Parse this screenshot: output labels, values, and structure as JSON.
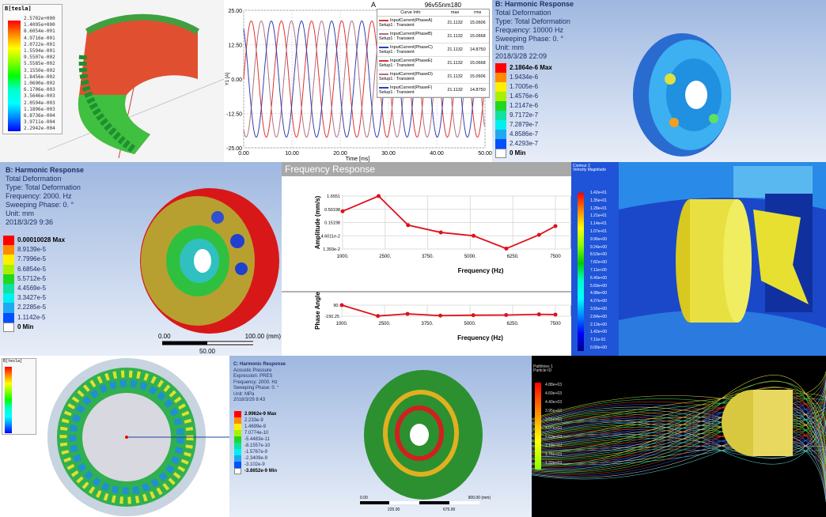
{
  "panel1": {
    "legend_title": "B[tesla]",
    "legend_values": [
      "2.5702e+000",
      "1.4095e+000",
      "8.6054e-001",
      "4.9716e-001",
      "2.0722e-001",
      "1.5594e-001",
      "9.5507e-002",
      "5.5585e-002",
      "3.1550e-002",
      "1.8456e-002",
      "1.0690e-002",
      "6.1706e-003",
      "3.5646e-003",
      "2.0594e-003",
      "1.1896e-003",
      "6.8736e-004",
      "3.9711e-004",
      "2.2942e-004"
    ]
  },
  "panel2": {
    "title": "A",
    "design": "96v55nm180",
    "ylabel": "Y1 [A]",
    "xlabel": "Time [ms]",
    "table_headers": [
      "Curve Info",
      "max",
      "rms"
    ],
    "table_rows": [
      {
        "name": "InputCurrent(PhaseA)",
        "setup": "Setup1 : Transient",
        "max": "21.1132",
        "rms": "15.0606",
        "color": "#e03030"
      },
      {
        "name": "InputCurrent(PhaseB)",
        "setup": "Setup1 : Transient",
        "max": "21.1132",
        "rms": "15.0668",
        "color": "#b07080"
      },
      {
        "name": "InputCurrent(PhaseC)",
        "setup": "Setup1 : Transient",
        "max": "21.1132",
        "rms": "14.8750",
        "color": "#3040b0"
      },
      {
        "name": "InputCurrent(PhaseE)",
        "setup": "Setup1 : Transient",
        "max": "21.1132",
        "rms": "15.0668",
        "color": "#e03030"
      },
      {
        "name": "InputCurrent(PhaseD)",
        "setup": "Setup1 : Transient",
        "max": "21.1132",
        "rms": "15.0606",
        "color": "#b07080"
      },
      {
        "name": "InputCurrent(PhaseF)",
        "setup": "Setup1 : Transient",
        "max": "21.1132",
        "rms": "14.8750",
        "color": "#3040b0"
      }
    ]
  },
  "panel3": {
    "header": "B: Harmonic Response",
    "lines": [
      "Total Deformation",
      "Type: Total Deformation",
      "Frequency: 10000 Hz",
      "Sweeping Phase: 0. °",
      "Unit: mm",
      "2018/3/28 22:09"
    ],
    "legend_values": [
      "2.1864e-6 Max",
      "1.9434e-6",
      "1.7005e-6",
      "1.4576e-6",
      "1.2147e-6",
      "9.7172e-7",
      "7.2879e-7",
      "4.8586e-7",
      "2.4293e-7",
      "0 Min"
    ]
  },
  "panel4": {
    "header": "B: Harmonic Response",
    "lines": [
      "Total Deformation",
      "Type: Total Deformation",
      "Frequency: 2000. Hz",
      "Sweeping Phase: 0. °",
      "Unit: mm",
      "2018/3/29 9:36"
    ],
    "legend_values": [
      "0.00010028 Max",
      "8.9139e-5",
      "7.7996e-5",
      "6.6854e-5",
      "5.5712e-5",
      "4.4569e-5",
      "3.3427e-5",
      "2.2285e-5",
      "1.1142e-5",
      "0 Min"
    ],
    "scale": {
      "left": "0.00",
      "right": "100.00 (mm)",
      "mid": "50.00"
    }
  },
  "panel5": {
    "title": "Frequency Response"
  },
  "panel6": {
    "legend_title": "Contour 2",
    "legend_subtitle": "Velocity Magnitude",
    "legend_values": [
      "1.42e+01",
      "1.35e+01",
      "1.28e+01",
      "1.21e+01",
      "1.14e+01",
      "1.07e+01",
      "9.96e+00",
      "9.24e+00",
      "8.53e+00",
      "7.82e+00",
      "7.11e+00",
      "6.40e+00",
      "5.69e+00",
      "4.98e+00",
      "4.27e+00",
      "3.56e+00",
      "2.84e+00",
      "2.13e+00",
      "1.42e+00",
      "7.11e-01",
      "0.00e+00"
    ]
  },
  "panel7": {
    "legend_title": "B[tesla]"
  },
  "panel8": {
    "header": "C: Harmonic Response",
    "lines": [
      "Acoustic Pressure",
      "Expression: PRES",
      "Frequency: 2000. Hz",
      "Sweeping Phase: 0. °",
      "Unit: MPa",
      "2018/3/29 8:43"
    ],
    "legend_values": [
      "2.9962e-9 Max",
      "2.233e-9",
      "1.4699e-9",
      "7.0774e-10",
      "-5.4483e-11",
      "-8.1557e-10",
      "-1.5767e-9",
      "-2.3409e-9",
      "-3.102e-9",
      "-3.8652e-9 Min"
    ],
    "scale": {
      "left": "0.00",
      "right": "900.00 (mm)",
      "mid1": "225.00",
      "mid2": "675.00"
    }
  },
  "panel9": {
    "legend_title": "Pathlines 1",
    "legend_subtitle": "Particle ID",
    "legend_values": [
      "4.88e+03",
      "4.69e+03",
      "4.40e+03",
      "3.95e+03",
      "3.51e+03",
      "3.07e+03",
      "2.63e+03",
      "2.19e+03",
      "1.76e+03",
      "1.32e+03"
    ]
  },
  "chart_data": [
    {
      "type": "line",
      "title": "A",
      "xlabel": "Time [ms]",
      "ylabel": "Y1 [A]",
      "xlim": [
        0,
        50
      ],
      "ylim": [
        -25,
        25
      ],
      "x_ticks": [
        "0.00",
        "10.00",
        "20.00",
        "30.00",
        "40.00",
        "50.00"
      ],
      "y_ticks": [
        "25.00",
        "12.50",
        "0.00",
        "-12.50",
        "-25.00"
      ],
      "grid": true,
      "legend_placement": "top-right",
      "series": [
        {
          "name": "InputCurrent(PhaseA)",
          "amplitude": 21.1132,
          "period_ms": 6.25,
          "phase_deg": 0
        },
        {
          "name": "InputCurrent(PhaseB)",
          "amplitude": 21.1132,
          "period_ms": 6.25,
          "phase_deg": -120
        },
        {
          "name": "InputCurrent(PhaseC)",
          "amplitude": 21.1132,
          "period_ms": 6.25,
          "phase_deg": 120
        }
      ]
    },
    {
      "type": "line",
      "title": "Frequency Response",
      "xlabel": "Frequency (Hz)",
      "ylabel": "Amplitude (mm/s)",
      "yscale": "log",
      "x_ticks": [
        "1000.",
        "2500.",
        "3750.",
        "5000.",
        "6250.",
        "7500"
      ],
      "y_ticks": [
        "1.6551",
        "0.50198",
        "0.15198",
        "4.6011e-2",
        "1.393e-2"
      ],
      "xlim": [
        1000,
        7500
      ],
      "ylim": [
        0.01393,
        1.6551
      ],
      "x": [
        1000,
        2100,
        3000,
        4000,
        5000,
        6000,
        7000,
        7500
      ],
      "values": [
        0.42,
        1.6551,
        0.12,
        0.062,
        0.046,
        0.0145,
        0.05,
        0.11
      ]
    },
    {
      "type": "line",
      "xlabel": "Frequency (Hz)",
      "ylabel": "Phase Angle",
      "x_ticks": [
        "1000.",
        "2500.",
        "3750.",
        "5000.",
        "6250.",
        "7500"
      ],
      "y_ticks": [
        "90.",
        "-150.25"
      ],
      "xlim": [
        1000,
        7500
      ],
      "ylim": [
        -150.25,
        90
      ],
      "x": [
        1000,
        2100,
        3000,
        4000,
        5000,
        6000,
        7000,
        7500
      ],
      "values": [
        90,
        -145,
        -100,
        -138,
        -128,
        -124,
        -110,
        -115
      ]
    }
  ],
  "colors": {
    "contour": [
      "#ff0000",
      "#ff8a00",
      "#ffee00",
      "#a8f000",
      "#20d820",
      "#10e0a0",
      "#00f0f0",
      "#20a8f0",
      "#0050ff",
      "#0000c8"
    ]
  }
}
